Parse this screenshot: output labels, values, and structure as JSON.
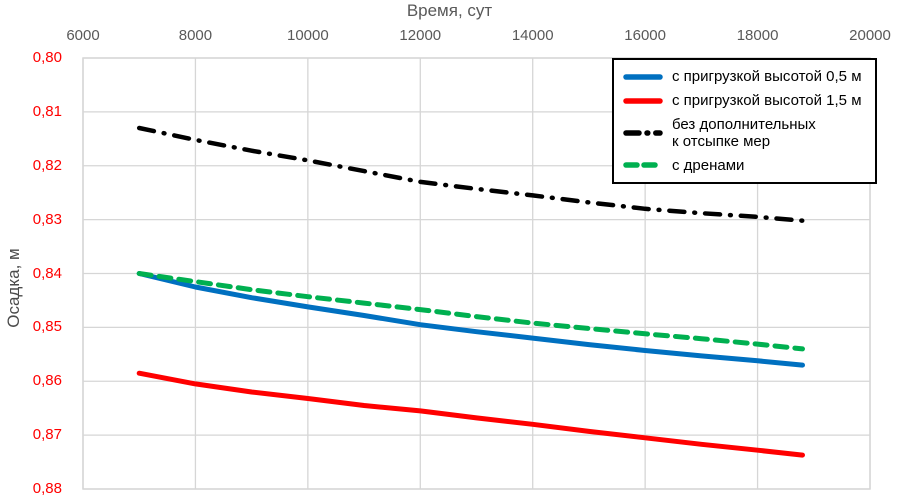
{
  "chart_data": {
    "type": "line",
    "xlabel": "Время, сут",
    "ylabel": "Осадка, м",
    "xlim": [
      6000,
      20000
    ],
    "ylim": [
      0.8,
      0.88
    ],
    "y_axis_inverted_downward": true,
    "grid": true,
    "legend_position": "top-right",
    "xticks": [
      6000,
      8000,
      10000,
      12000,
      14000,
      16000,
      18000,
      20000
    ],
    "xtick_labels": [
      "6000",
      "8000",
      "10000",
      "12000",
      "14000",
      "16000",
      "18000",
      "20000"
    ],
    "yticks": [
      0.8,
      0.81,
      0.82,
      0.83,
      0.84,
      0.85,
      0.86,
      0.87,
      0.88
    ],
    "ytick_labels": [
      "0,80",
      "0,81",
      "0,82",
      "0,83",
      "0,84",
      "0,85",
      "0,86",
      "0,87",
      "0,88"
    ],
    "x": [
      7000,
      8000,
      9000,
      10000,
      11000,
      12000,
      13000,
      14000,
      15000,
      16000,
      17000,
      18000,
      18800
    ],
    "series": [
      {
        "name": "с пригрузкой высотой 0,5 м",
        "color": "#0070C0",
        "style": "solid",
        "values": [
          0.84,
          0.8425,
          0.8445,
          0.8462,
          0.8478,
          0.8495,
          0.8508,
          0.852,
          0.8532,
          0.8543,
          0.8553,
          0.8562,
          0.857
        ]
      },
      {
        "name": "с пригрузкой высотой 1,5 м",
        "color": "#FF0000",
        "style": "solid",
        "values": [
          0.8585,
          0.8605,
          0.862,
          0.8632,
          0.8645,
          0.8655,
          0.8668,
          0.868,
          0.8693,
          0.8705,
          0.8717,
          0.8728,
          0.8737
        ]
      },
      {
        "name": "без дополнительных\nк отсыпке мер",
        "color": "#000000",
        "style": "dashdot",
        "values": [
          0.813,
          0.8152,
          0.8172,
          0.819,
          0.821,
          0.823,
          0.8243,
          0.8255,
          0.8268,
          0.828,
          0.8288,
          0.8295,
          0.8302
        ]
      },
      {
        "name": "с дренами",
        "color": "#00B050",
        "style": "dashed",
        "values": [
          0.84,
          0.8415,
          0.843,
          0.8443,
          0.8455,
          0.8467,
          0.848,
          0.8492,
          0.8502,
          0.8512,
          0.8521,
          0.8531,
          0.854
        ]
      }
    ],
    "colors": {
      "grid": "#D6D6D6",
      "x_tick_text": "#595959",
      "y_tick_text": "#FF0000",
      "axis_title_text": "#595959",
      "legend_border": "#000000"
    }
  }
}
